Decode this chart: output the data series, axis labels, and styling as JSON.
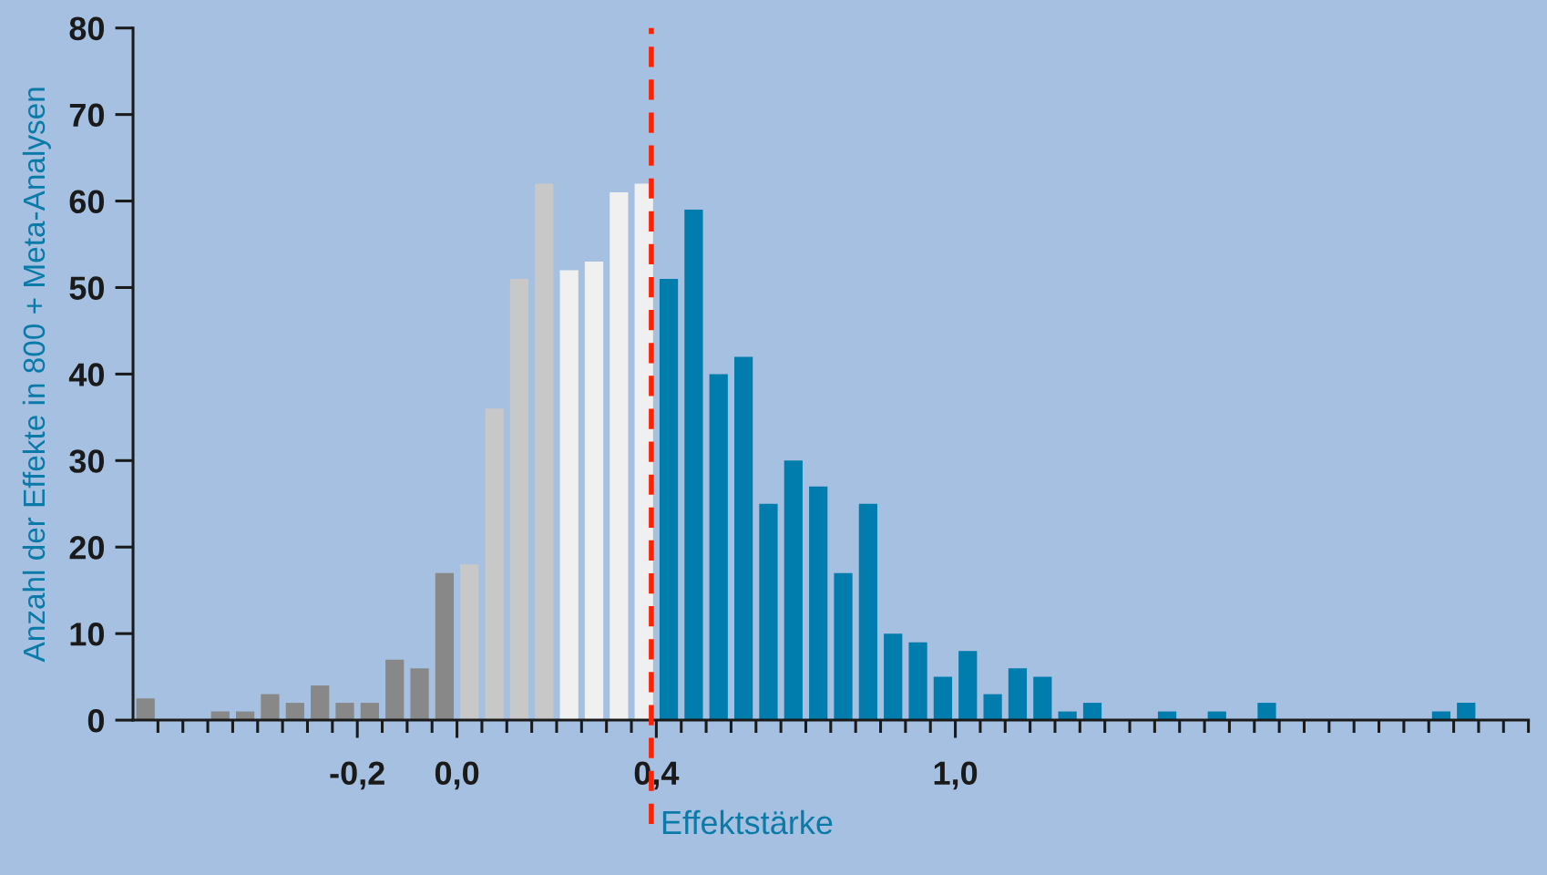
{
  "chart_data": {
    "type": "histogram",
    "xlabel": "Effektstärke",
    "ylabel": "Anzahl der Effekte in 800 + Meta-Analysen",
    "bins": [
      -0.65,
      -0.6,
      -0.55,
      -0.5,
      -0.45,
      -0.4,
      -0.35,
      -0.3,
      -0.25,
      -0.2,
      -0.15,
      -0.1,
      -0.05,
      0.0,
      0.05,
      0.1,
      0.15,
      0.2,
      0.25,
      0.3,
      0.35,
      0.4,
      0.45,
      0.5,
      0.55,
      0.6,
      0.65,
      0.7,
      0.75,
      0.8,
      0.85,
      0.9,
      0.95,
      1.0,
      1.05,
      1.1,
      1.15,
      1.2,
      1.25,
      1.3,
      1.35,
      1.4,
      1.45,
      1.5,
      1.55,
      1.6,
      1.65,
      1.7,
      1.75,
      1.8,
      1.85,
      1.9,
      1.95,
      2.0,
      2.05
    ],
    "values": [
      2.5,
      0,
      0,
      1,
      1,
      3,
      2,
      4,
      2,
      2,
      7,
      6,
      17,
      18,
      36,
      51,
      62,
      52,
      53,
      61,
      62,
      51,
      59,
      40,
      42,
      25,
      30,
      27,
      17,
      25,
      10,
      9,
      5,
      8,
      3,
      6,
      5,
      1,
      2,
      0,
      0,
      1,
      0,
      1,
      0,
      2,
      0,
      0,
      0,
      0,
      0,
      0,
      1,
      2
    ],
    "colors": [
      "#888888",
      "#888888",
      "#888888",
      "#888888",
      "#888888",
      "#888888",
      "#888888",
      "#888888",
      "#888888",
      "#888888",
      "#888888",
      "#888888",
      "#888888",
      "#c8c8c8",
      "#c8c8c8",
      "#c8c8c8",
      "#c8c8c8",
      "#f0f0f0",
      "#f0f0f0",
      "#f0f0f0",
      "#f0f0f0",
      "#007dad",
      "#007dad",
      "#007dad",
      "#007dad",
      "#007dad",
      "#007dad",
      "#007dad",
      "#007dad",
      "#007dad",
      "#007dad",
      "#007dad",
      "#007dad",
      "#007dad",
      "#007dad",
      "#007dad",
      "#007dad",
      "#007dad",
      "#007dad",
      "#007dad",
      "#007dad",
      "#007dad",
      "#007dad",
      "#007dad",
      "#007dad",
      "#007dad",
      "#007dad",
      "#007dad",
      "#007dad",
      "#007dad",
      "#007dad",
      "#007dad",
      "#007dad",
      "#007dad"
    ],
    "xlim": [
      -0.65,
      2.15
    ],
    "xticks": [
      {
        "value": -0.6,
        "label": null
      },
      {
        "value": -0.55,
        "label": null
      },
      {
        "value": -0.5,
        "label": null
      },
      {
        "value": -0.45,
        "label": null
      },
      {
        "value": -0.4,
        "label": null
      },
      {
        "value": -0.35,
        "label": null
      },
      {
        "value": -0.3,
        "label": null
      },
      {
        "value": -0.25,
        "label": null
      },
      {
        "value": -0.2,
        "label": "-0,2"
      },
      {
        "value": -0.15,
        "label": null
      },
      {
        "value": -0.1,
        "label": null
      },
      {
        "value": -0.05,
        "label": null
      },
      {
        "value": 0.0,
        "label": "0,0"
      },
      {
        "value": 0.05,
        "label": null
      },
      {
        "value": 0.1,
        "label": null
      },
      {
        "value": 0.15,
        "label": null
      },
      {
        "value": 0.2,
        "label": null
      },
      {
        "value": 0.25,
        "label": null
      },
      {
        "value": 0.3,
        "label": null
      },
      {
        "value": 0.35,
        "label": null
      },
      {
        "value": 0.4,
        "label": "0,4"
      },
      {
        "value": 0.45,
        "label": null
      },
      {
        "value": 0.5,
        "label": null
      },
      {
        "value": 0.55,
        "label": null
      },
      {
        "value": 0.6,
        "label": null
      },
      {
        "value": 0.65,
        "label": null
      },
      {
        "value": 0.7,
        "label": null
      },
      {
        "value": 0.75,
        "label": null
      },
      {
        "value": 0.8,
        "label": null
      },
      {
        "value": 0.85,
        "label": null
      },
      {
        "value": 0.9,
        "label": null
      },
      {
        "value": 0.95,
        "label": null
      },
      {
        "value": 1.0,
        "label": "1,0"
      },
      {
        "value": 1.05,
        "label": null
      },
      {
        "value": 1.1,
        "label": null
      },
      {
        "value": 1.15,
        "label": null
      },
      {
        "value": 1.2,
        "label": null
      },
      {
        "value": 1.25,
        "label": null
      },
      {
        "value": 1.3,
        "label": null
      },
      {
        "value": 1.35,
        "label": null
      },
      {
        "value": 1.4,
        "label": null
      },
      {
        "value": 1.45,
        "label": null
      },
      {
        "value": 1.5,
        "label": null
      },
      {
        "value": 1.55,
        "label": null
      },
      {
        "value": 1.6,
        "label": null
      },
      {
        "value": 1.65,
        "label": null
      },
      {
        "value": 1.7,
        "label": null
      },
      {
        "value": 1.75,
        "label": null
      },
      {
        "value": 1.8,
        "label": null
      },
      {
        "value": 1.85,
        "label": null
      },
      {
        "value": 1.9,
        "label": null
      },
      {
        "value": 1.95,
        "label": null
      },
      {
        "value": 2.0,
        "label": null
      },
      {
        "value": 2.05,
        "label": null
      },
      {
        "value": 2.1,
        "label": null
      },
      {
        "value": 2.15,
        "label": null
      }
    ],
    "ylim": [
      0,
      80
    ],
    "yticks": [
      0,
      10,
      20,
      30,
      40,
      50,
      60,
      70,
      80
    ],
    "ref_lines": [
      {
        "axis": "x",
        "value": 0.39,
        "color": "#ff2200",
        "line_style": "dashed"
      }
    ]
  }
}
